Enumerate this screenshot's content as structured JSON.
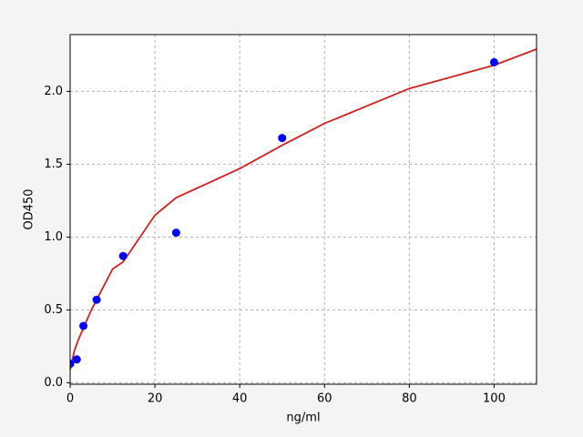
{
  "chart_data": {
    "type": "scatter",
    "xlabel": "ng/ml",
    "ylabel": "OD450",
    "xlim": [
      0,
      110
    ],
    "ylim": [
      -0.01,
      2.39
    ],
    "xticks": [
      0,
      20,
      40,
      60,
      80,
      100
    ],
    "yticks": [
      {
        "value": 0,
        "label": "0.0"
      },
      {
        "value": 0.5,
        "label": "0.5"
      },
      {
        "value": 1,
        "label": "1.0"
      },
      {
        "value": 1.5,
        "label": "1.5"
      },
      {
        "value": 2,
        "label": "2.0"
      }
    ],
    "grid": true,
    "series": [
      {
        "type": "line",
        "color": "#d62020",
        "x": [
          0,
          1,
          2,
          5,
          10,
          12.5,
          20,
          25,
          40,
          50,
          60,
          80,
          100,
          110
        ],
        "values": [
          0.09,
          0.22,
          0.3,
          0.5,
          0.78,
          0.83,
          1.15,
          1.27,
          1.47,
          1.63,
          1.78,
          2.02,
          2.18,
          2.29
        ]
      },
      {
        "type": "scatter",
        "color": "#0000ff",
        "x": [
          0,
          1.56,
          3.125,
          6.25,
          12.5,
          25,
          50,
          100
        ],
        "values": [
          0.13,
          0.16,
          0.39,
          0.57,
          0.87,
          1.03,
          1.68,
          2.2
        ]
      }
    ]
  }
}
